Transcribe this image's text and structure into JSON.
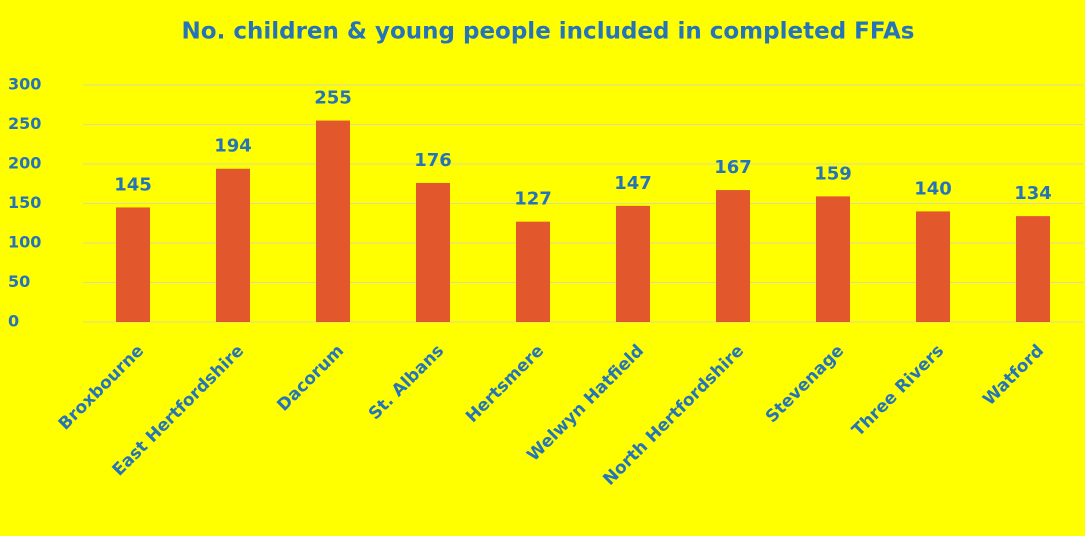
{
  "chart_data": {
    "type": "bar",
    "title": "No. children & young people included in completed FFAs",
    "categories": [
      "Broxbourne",
      "East Hertfordshire",
      "Dacorum",
      "St. Albans",
      "Hertsmere",
      "Welwyn Hatfield",
      "North Hertfordshire",
      "Stevenage",
      "Three Rivers",
      "Watford"
    ],
    "values": [
      145,
      194,
      255,
      176,
      127,
      147,
      167,
      159,
      140,
      134
    ],
    "color": "#e2572b",
    "ylim": [
      0,
      300
    ],
    "yticks": [
      0,
      50,
      100,
      150,
      200,
      250,
      300
    ],
    "grid": true,
    "data_labels": true
  }
}
